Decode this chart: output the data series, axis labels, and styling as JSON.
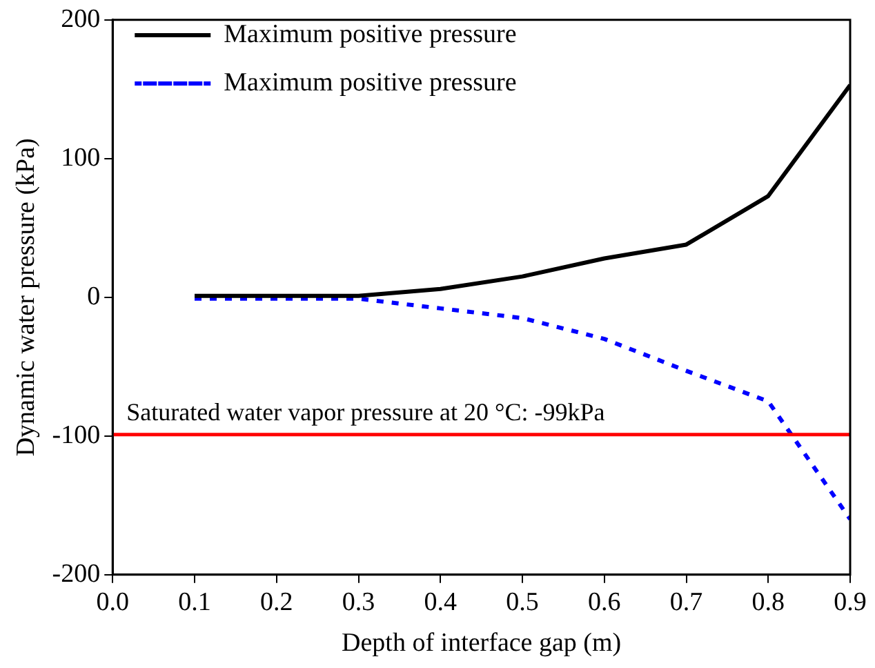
{
  "chart_data": {
    "type": "line",
    "xlabel": "Depth of interface gap (m)",
    "ylabel": "Dynamic water pressure (kPa)",
    "x": [
      0.1,
      0.2,
      0.3,
      0.4,
      0.5,
      0.6,
      0.7,
      0.8,
      0.9
    ],
    "series": [
      {
        "name": "Maximum positive pressure",
        "color": "#000000",
        "line_style": "solid",
        "values": [
          1,
          1,
          1,
          6,
          15,
          28,
          38,
          73,
          153
        ]
      },
      {
        "name": "Maximum positive pressure",
        "color": "#0000ff",
        "line_style": "dotted",
        "values": [
          -1,
          -1,
          -1,
          -8,
          -15,
          -30,
          -53,
          -75,
          -160
        ]
      }
    ],
    "xlim": [
      0,
      0.9
    ],
    "xticks": [
      {
        "value": 0,
        "label": "0.0"
      },
      0.1,
      0.2,
      0.3,
      0.4,
      0.5,
      0.6,
      0.7,
      0.8,
      0.9
    ],
    "ylim": [
      -200,
      200
    ],
    "yticks": [
      -200,
      -100,
      0,
      100,
      200
    ],
    "ref_lines": [
      {
        "axis": "y",
        "value": -99,
        "label": "Saturated water vapor pressure at 20 °C: -99kPa",
        "color": "#ff0000"
      }
    ],
    "grid": false,
    "legend": "top left",
    "marker": "none"
  }
}
